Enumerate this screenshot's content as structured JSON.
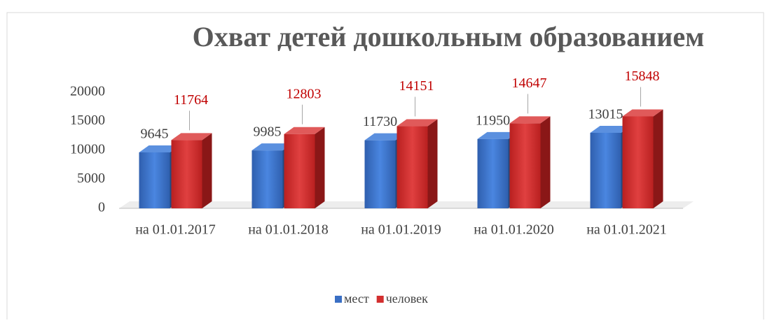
{
  "chart_data": {
    "type": "bar3d",
    "title": "Охват детей дошкольным образованием",
    "categories": [
      "на 01.01.2017",
      "на 01.01.2018",
      "на 01.01.2019",
      "на 01.01.2020",
      "на 01.01.2021"
    ],
    "series": [
      {
        "name": "мест",
        "color": "#3a6fc4",
        "values": [
          9645,
          9985,
          11730,
          11950,
          13015
        ]
      },
      {
        "name": "человек",
        "color": "#d32f2f",
        "values": [
          11764,
          12803,
          14151,
          14647,
          15848
        ]
      }
    ],
    "ylim": [
      0,
      20000
    ],
    "yticks": [
      0,
      5000,
      10000,
      15000,
      20000
    ],
    "legend": "bottom"
  }
}
